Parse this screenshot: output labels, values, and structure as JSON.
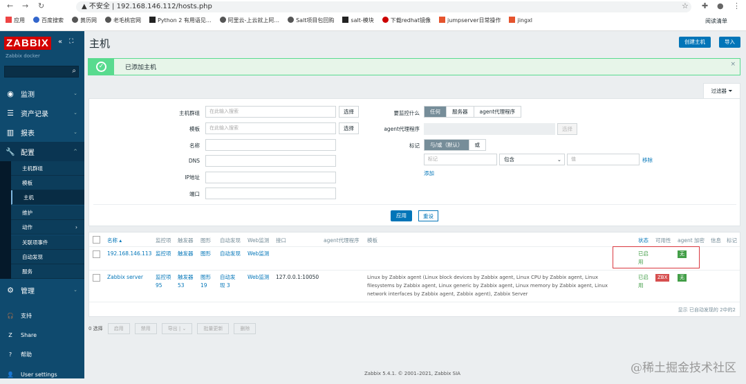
{
  "browser": {
    "security": "不安全",
    "url": "192.168.146.112/hosts.php",
    "bookmarks": [
      "应用",
      "百度搜索",
      "黄历网",
      "老毛桃官网",
      "Python 2 有用语见...",
      "阿里云-上云就上阿...",
      "Salt项目包回购",
      "salt-模块",
      "下载redhat镜像",
      "jumpserver日常操作",
      "jingxl"
    ],
    "reading_list": "阅读清单"
  },
  "sidebar": {
    "logo": "ZABBIX",
    "server": "Zabbix docker",
    "menu": [
      {
        "label": "监测",
        "icon": "eye-icon"
      },
      {
        "label": "资产记录",
        "icon": "list-icon"
      },
      {
        "label": "报表",
        "icon": "chart-icon"
      },
      {
        "label": "配置",
        "icon": "wrench-icon"
      }
    ],
    "submenu": [
      "主机群组",
      "模板",
      "主机",
      "维护",
      "动作",
      "关联项事件",
      "自动发现",
      "服务"
    ],
    "admin": "管理",
    "bottom": [
      "支持",
      "Share",
      "帮助",
      "User settings"
    ]
  },
  "page": {
    "title": "主机",
    "create_button": "创建主机",
    "import_button": "导入"
  },
  "message": {
    "text": "已添加主机"
  },
  "filter": {
    "tab": "过滤器",
    "host_groups_label": "主机群组",
    "host_groups_placeholder": "在此输入搜索",
    "select": "选择",
    "templates_label": "模板",
    "templates_placeholder": "在此输入搜索",
    "name_label": "名称",
    "dns_label": "DNS",
    "ip_label": "IP地址",
    "port_label": "端口",
    "monitored_by_label": "要监控什么",
    "monitored_by_options": [
      "任何",
      "服务器",
      "agent代理程序"
    ],
    "proxy_label": "agent代理程序",
    "proxy_select": "选择",
    "tags_label": "标记",
    "tags_options": [
      "与/或（默认）",
      "或"
    ],
    "tag_placeholder": "标记",
    "operator": "包含",
    "value_placeholder": "值",
    "remove": "移除",
    "add": "添加",
    "apply": "应用",
    "reset": "重设"
  },
  "table": {
    "headers": [
      "名称 ▴",
      "监控项",
      "触发器",
      "图形",
      "自动发现",
      "Web监测",
      "接口",
      "agent代理程序",
      "模板",
      "状态",
      "可用性",
      "agent 加密",
      "信息",
      "标记"
    ],
    "rows": [
      {
        "name": "192.168.146.113",
        "items": "监控项",
        "triggers": "触发器",
        "graphs": "图形",
        "discovery": "自动发现",
        "web": "Web监测",
        "interface": "",
        "templates": "",
        "status": "已启用",
        "availability": "",
        "encryption": "无"
      },
      {
        "name": "Zabbix server",
        "items": "监控项 95",
        "triggers": "触发器 53",
        "graphs": "图形 19",
        "discovery": "自动发现 3",
        "web": "Web监测",
        "interface": "127.0.0.1:10050",
        "templates": "Linux by Zabbix agent (Linux block devices by Zabbix agent, Linux CPU by Zabbix agent, Linux filesystems by Zabbix agent, Linux generic by Zabbix agent, Linux memory by Zabbix agent, Linux network interfaces by Zabbix agent, Zabbix agent), Zabbix Server",
        "status": "已启用",
        "availability": "ZBX",
        "encryption": "无"
      }
    ],
    "summary": "显示 已自动发现的 2中的2"
  },
  "actions": {
    "selected": "0 选择",
    "buttons": [
      "启用",
      "禁用",
      "导出",
      "批量更新",
      "删除"
    ]
  },
  "footer": "Zabbix 5.4.1. © 2001–2021, Zabbix SIA",
  "watermark": "@稀土掘金技术社区",
  "colors": {
    "sidebar": "#0f4a6e",
    "accent": "#0275b8",
    "success": "#59db8f",
    "enabled": "#429e47",
    "zbx_red": "#d64e4e",
    "highlight_box": "#d9363e"
  }
}
